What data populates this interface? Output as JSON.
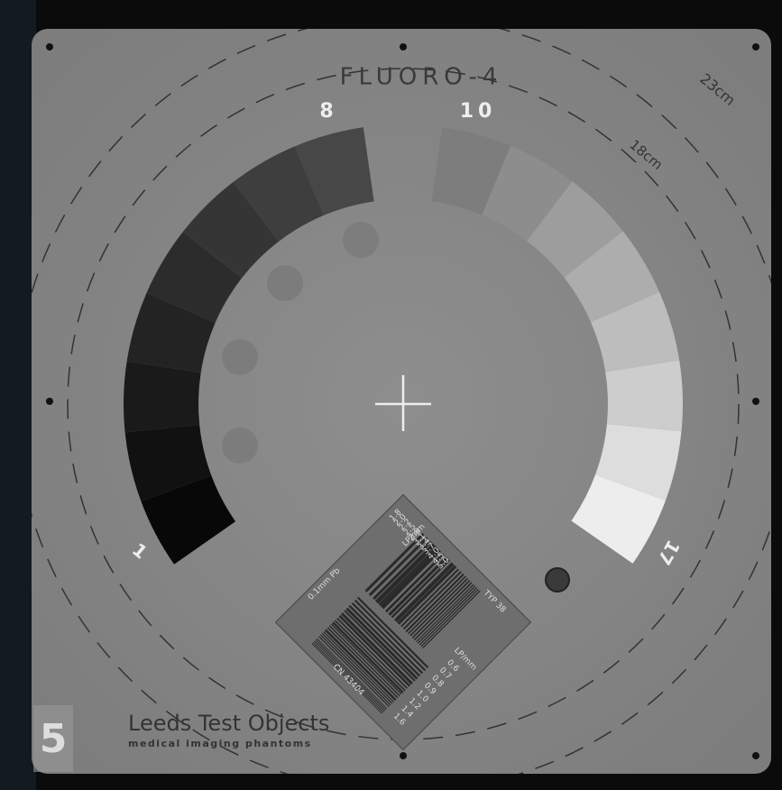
{
  "title": "FLUORO-4",
  "step_labels": {
    "first": "1",
    "left_end": "8",
    "right_start": "10",
    "last": "17"
  },
  "field_labels": {
    "outer": "23cm",
    "inner": "18cm"
  },
  "resolution_pattern": {
    "unit_top": "LP/mm",
    "unit_side": "LP/mm",
    "type": "TYP 38",
    "filter": "0.1mm Pb",
    "serial": "CN 43404",
    "high_values": [
      "1.8",
      "2.0",
      "2.2",
      "2.5",
      "2.8",
      "3.1",
      "3.4",
      "3.7",
      "4.0",
      "4.5",
      "5.0"
    ],
    "low_values": [
      "0.6",
      "0.7",
      "0.8",
      "0.9",
      "1.0",
      "1.2",
      "1.4",
      "1.6"
    ]
  },
  "maker": {
    "name": "Leeds Test Objects",
    "tagline": "medical imaging phantoms"
  },
  "frame_number": "5"
}
